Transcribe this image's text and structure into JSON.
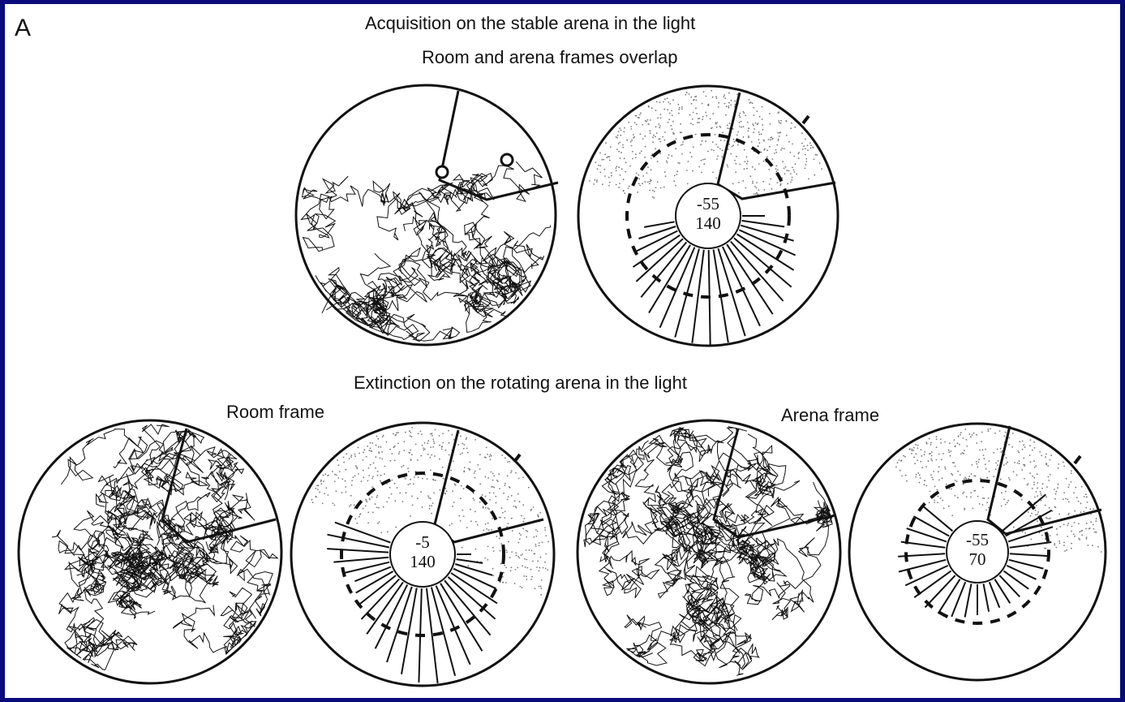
{
  "panel_label": "A",
  "section_titles": {
    "acquisition": "Acquisition on the stable arena in the light",
    "overlap": "Room and arena frames overlap",
    "extinction": "Extinction on the rotating arena in the light",
    "room_frame": "Room frame",
    "arena_frame": "Arena frame"
  },
  "colors": {
    "background": "#0a0a7a",
    "figure": "#ffffff",
    "ink": "#111111"
  },
  "polar_plots": [
    {
      "id": "acquisition",
      "top": "-55",
      "bottom": "140"
    },
    {
      "id": "extinction-room",
      "top": "-5",
      "bottom": "140"
    },
    {
      "id": "extinction-arena",
      "top": "-55",
      "bottom": "70"
    }
  ],
  "tracks": [
    {
      "id": "acquisition-track",
      "density": "medium"
    },
    {
      "id": "room-frame-track",
      "density": "high"
    },
    {
      "id": "arena-frame-track",
      "density": "high"
    }
  ]
}
